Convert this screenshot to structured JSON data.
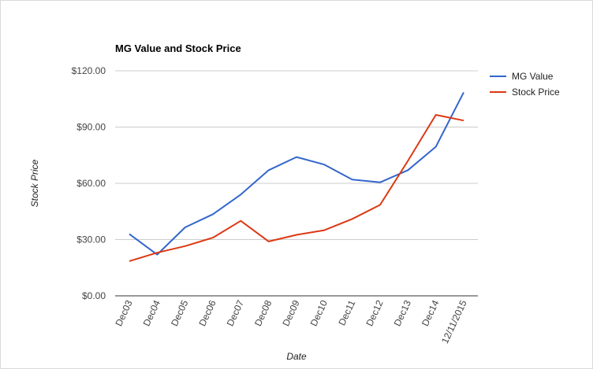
{
  "chart_data": {
    "type": "line",
    "title": "MG Value and Stock Price",
    "xlabel": "Date",
    "ylabel": "Stock Price",
    "ylim": [
      0,
      120
    ],
    "yticks": [
      "$0.00",
      "$30.00",
      "$60.00",
      "$90.00",
      "$120.00"
    ],
    "ytick_values": [
      0,
      30,
      60,
      90,
      120
    ],
    "categories": [
      "Dec03",
      "Dec04",
      "Dec05",
      "Dec06",
      "Dec07",
      "Dec08",
      "Dec09",
      "Dec10",
      "Dec11",
      "Dec12",
      "Dec13",
      "Dec14",
      "12/11/2015"
    ],
    "series": [
      {
        "name": "MG Value",
        "color": "#3366cc",
        "values": [
          33,
          22,
          36.5,
          43.5,
          54,
          67,
          74,
          70,
          62,
          60.5,
          67,
          79.5,
          108.5
        ]
      },
      {
        "name": "Stock Price",
        "color": "#dc3912",
        "values": [
          18.5,
          23,
          26.5,
          31,
          40,
          29,
          32.5,
          35,
          41,
          48.5,
          72,
          96.5,
          93.5
        ]
      }
    ],
    "grid": true,
    "legend": "right"
  }
}
